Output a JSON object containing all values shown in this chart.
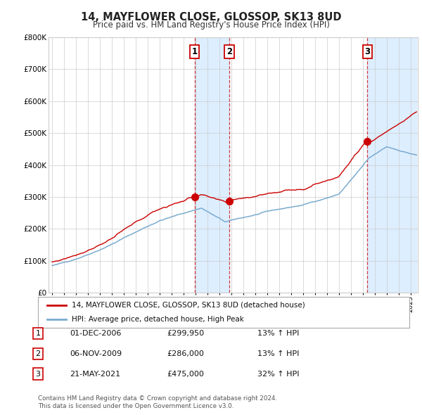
{
  "title": "14, MAYFLOWER CLOSE, GLOSSOP, SK13 8UD",
  "subtitle": "Price paid vs. HM Land Registry's House Price Index (HPI)",
  "sale1_year": 2006.917,
  "sale1_price": 299950,
  "sale2_year": 2009.833,
  "sale2_price": 286000,
  "sale3_year": 2021.375,
  "sale3_price": 475000,
  "legend_red": "14, MAYFLOWER CLOSE, GLOSSOP, SK13 8UD (detached house)",
  "legend_blue": "HPI: Average price, detached house, High Peak",
  "footer1": "Contains HM Land Registry data © Crown copyright and database right 2024.",
  "footer2": "This data is licensed under the Open Government Licence v3.0.",
  "table_rows": [
    {
      "num": "1",
      "date": "01-DEC-2006",
      "price": "£299,950",
      "hpi": "13% ↑ HPI"
    },
    {
      "num": "2",
      "date": "06-NOV-2009",
      "price": "£286,000",
      "hpi": "13% ↑ HPI"
    },
    {
      "num": "3",
      "date": "21-MAY-2021",
      "price": "£475,000",
      "hpi": "32% ↑ HPI"
    }
  ],
  "red_color": "#cc0000",
  "blue_color": "#7aabcf",
  "bg_color": "#ffffff",
  "grid_color": "#cccccc",
  "shade_color": "#ddeeff",
  "ylim": [
    0,
    800000
  ],
  "yticks": [
    0,
    100000,
    200000,
    300000,
    400000,
    500000,
    600000,
    700000,
    800000
  ],
  "ytick_labels": [
    "£0",
    "£100K",
    "£200K",
    "£300K",
    "£400K",
    "£500K",
    "£600K",
    "£700K",
    "£800K"
  ],
  "xstart_year": 1995,
  "xend_year": 2025
}
